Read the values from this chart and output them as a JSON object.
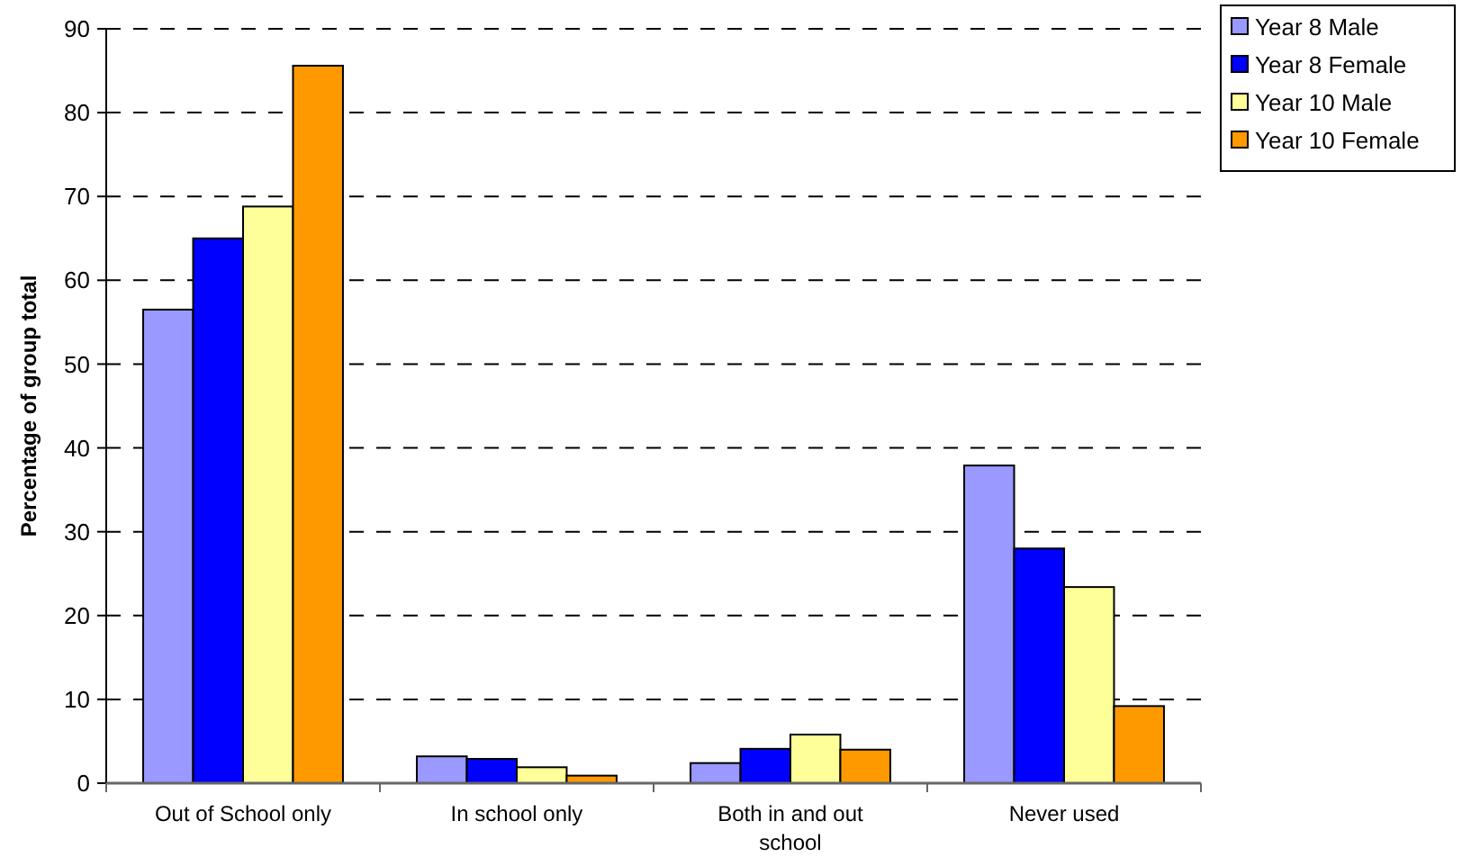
{
  "chart_data": {
    "type": "bar",
    "ylabel": "Percentage of group total",
    "categories": [
      "Out of School only",
      "In school only",
      "Both in and out school",
      "Never used"
    ],
    "series": [
      {
        "name": "Year 8 Male",
        "color": "#9999ff",
        "values": [
          56.5,
          3.2,
          2.4,
          37.9
        ]
      },
      {
        "name": "Year 8 Female",
        "color": "#0000ff",
        "values": [
          65,
          2.9,
          4.1,
          28
        ]
      },
      {
        "name": "Year 10 Male",
        "color": "#ffff99",
        "values": [
          68.8,
          1.9,
          5.8,
          23.4
        ]
      },
      {
        "name": "Year 10 Female",
        "color": "#ff9900",
        "values": [
          85.6,
          0.9,
          4.0,
          9.2
        ]
      }
    ],
    "ylim": [
      0,
      90
    ],
    "yticks": [
      0,
      10,
      20,
      30,
      40,
      50,
      60,
      70,
      80,
      90
    ],
    "grid": "y",
    "legend": "top right"
  }
}
